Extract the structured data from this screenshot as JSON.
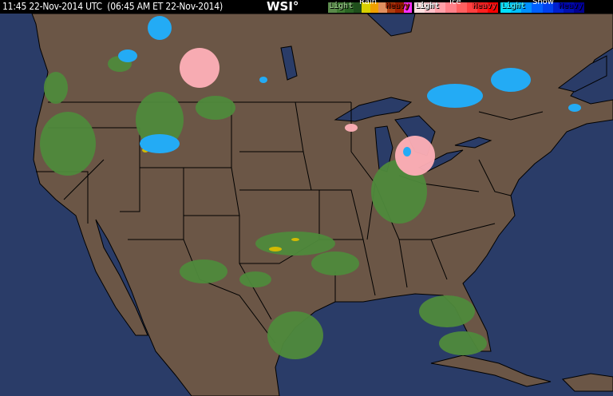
{
  "header": {
    "timestamp": "11:45 22-Nov-2014 UTC  (06:45 AM ET 22-Nov-2014)",
    "logo": "WSI°"
  },
  "legend": {
    "rain": {
      "title": "Rain",
      "light": "Light",
      "heavy": "Heavy",
      "colors": [
        "#5a8a4a",
        "#3f7a32",
        "#2a6424",
        "#1f4f1c",
        "#d8d000",
        "#f0a000",
        "#e09060",
        "#b04010",
        "#a02000",
        "#ff30ff"
      ]
    },
    "ice": {
      "title": "Ice",
      "light": "Light",
      "heavy": "Heavy",
      "colors": [
        "#ffe0e0",
        "#ffc0c8",
        "#ffa0a8",
        "#ff8088",
        "#ff6060",
        "#ff4040",
        "#ff2020",
        "#ff0000"
      ]
    },
    "snow": {
      "title": "Snow",
      "light": "Light",
      "heavy": "Heavy",
      "colors": [
        "#00e0ff",
        "#00c0ff",
        "#0090ff",
        "#0060ff",
        "#0040f0",
        "#0020d0",
        "#0010b0",
        "#000090"
      ]
    }
  },
  "map": {
    "ocean_color": "#2a3c68",
    "land_color": "#6b5646",
    "border_color": "#000000"
  }
}
